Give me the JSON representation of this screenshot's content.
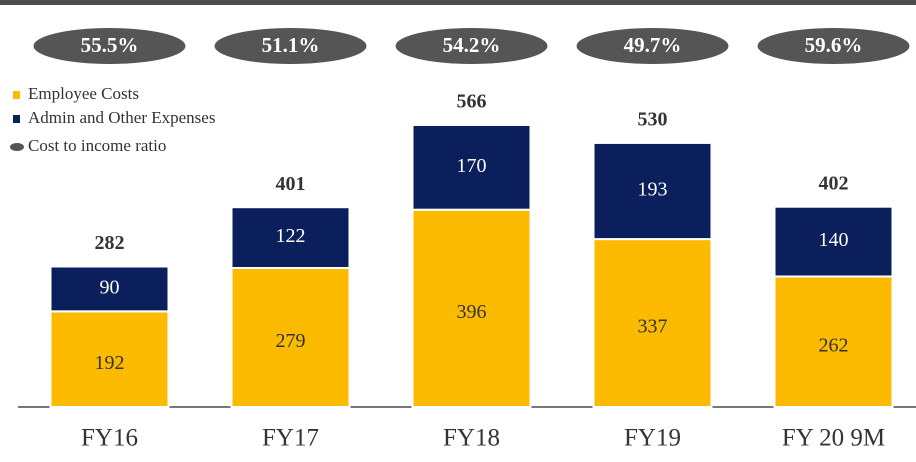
{
  "chart_data": {
    "type": "stacked-bar",
    "categories": [
      "FY16",
      "FY17",
      "FY18",
      "FY19",
      "FY 20 9M"
    ],
    "series": [
      {
        "name": "Employee Costs",
        "color": "#fcbb00",
        "values": [
          192,
          279,
          396,
          337,
          262
        ]
      },
      {
        "name": "Admin and Other Expenses",
        "color": "#0b1f5c",
        "values": [
          90,
          122,
          170,
          193,
          140
        ]
      }
    ],
    "totals": [
      282,
      401,
      566,
      530,
      402
    ],
    "ratio": {
      "name": "Cost to income ratio",
      "color": "#555555",
      "values": [
        55.5,
        51.1,
        54.2,
        49.7,
        59.6
      ],
      "value_labels": [
        "55.5%",
        "51.1%",
        "54.2%",
        "49.7%",
        "59.6%"
      ]
    }
  }
}
